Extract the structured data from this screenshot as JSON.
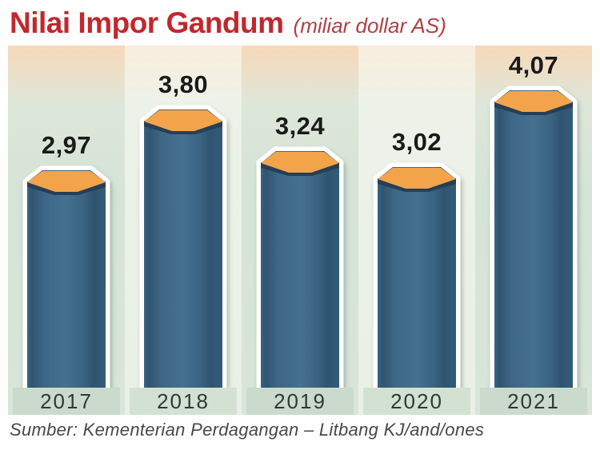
{
  "header": {
    "title": "Nilai Impor Gandum",
    "subtitle": "(miliar dollar AS)"
  },
  "chart_data": {
    "type": "bar",
    "title": "Nilai Impor Gandum",
    "unit_label": "(miliar dollar AS)",
    "categories": [
      "2017",
      "2018",
      "2019",
      "2020",
      "2021"
    ],
    "values": [
      2.97,
      3.8,
      3.24,
      3.02,
      4.07
    ],
    "value_labels": [
      "2,97",
      "3,80",
      "3,24",
      "3,02",
      "4,07"
    ],
    "ylim": [
      0,
      4.5
    ],
    "grid": false,
    "legend": "none",
    "bar_style": "3d-hexagonal-column",
    "colors": {
      "title_red": "#c1282e",
      "subtitle_red": "#b04045",
      "bar_top_orange": "#f3a44b",
      "bar_under_edge": "#263f56",
      "bar_body_blue": "#3e6786",
      "bar_outline": "#ffffff",
      "band_warm_top": "#f7d9b9",
      "band_mint": "#d6e3d7",
      "band_light": "#e9f0e7",
      "year_cell_green": "#cadacd",
      "year_text": "#2d3a37",
      "value_text": "#1a1a1a",
      "source_text": "#484848"
    }
  },
  "footer": {
    "source": "Sumber: Kementerian Perdagangan – Litbang KJ/and/ones"
  }
}
